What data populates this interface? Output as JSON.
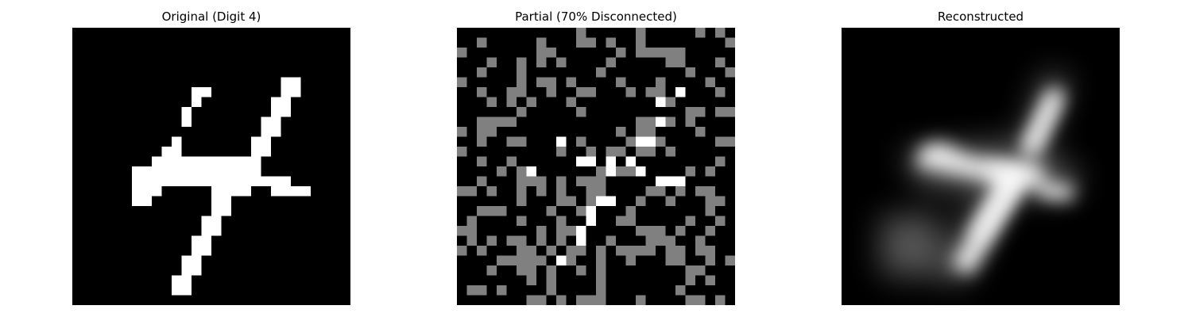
{
  "panels": [
    {
      "title": "Original (Digit 4)"
    },
    {
      "title": "Partial (70% Disconnected)"
    },
    {
      "title": "Reconstructed"
    }
  ],
  "colors": {
    "background": "#000000",
    "foreground": "#ffffff",
    "masked": "#808080"
  }
}
